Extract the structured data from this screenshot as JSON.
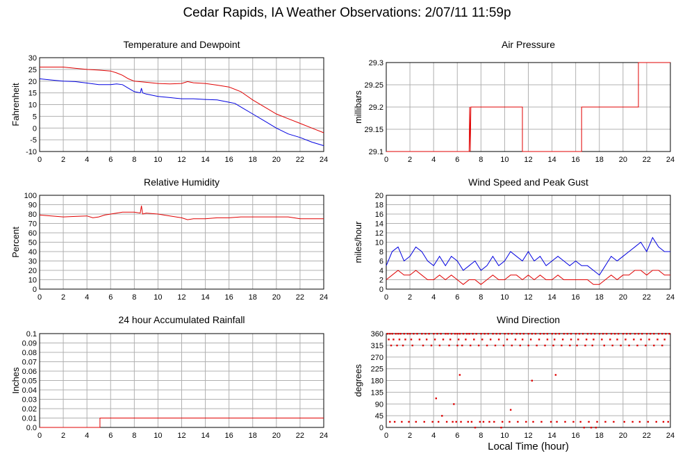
{
  "title": "Cedar Rapids, IA Weather Observations: 2/07/11 11:59p",
  "xlabel": "Local Time (hour)",
  "colors": {
    "primary": "#e00000",
    "secondary": "#0000e0",
    "grid": "#b0b0b0"
  },
  "chart_data": [
    {
      "type": "line",
      "title": "Temperature and Dewpoint",
      "ylabel": "Fahrenheit",
      "xlim": [
        0,
        24
      ],
      "ylim": [
        -10,
        30
      ],
      "xticks": [
        0,
        2,
        4,
        6,
        8,
        10,
        12,
        14,
        16,
        18,
        20,
        22,
        24
      ],
      "yticks": [
        -10,
        -5,
        0,
        5,
        10,
        15,
        20,
        25,
        30
      ],
      "grid": true,
      "series": [
        {
          "color": "#e00000",
          "x": [
            0,
            1,
            2,
            3,
            4,
            5,
            6,
            6.5,
            7,
            7.5,
            8,
            9,
            10,
            11,
            12,
            12.5,
            13,
            14,
            15,
            16,
            17,
            18,
            19,
            20,
            21,
            22,
            23,
            24
          ],
          "y": [
            26,
            26,
            26,
            25.5,
            25,
            24.7,
            24.3,
            23.5,
            22.5,
            21,
            20,
            19.5,
            19,
            18.8,
            19,
            19.8,
            19.3,
            19,
            18.3,
            17.5,
            15.5,
            12,
            9,
            6,
            4,
            2,
            0,
            -2
          ]
        },
        {
          "color": "#0000e0",
          "x": [
            0,
            1,
            2,
            3,
            4,
            5,
            6,
            6.5,
            7,
            7.5,
            8,
            8.5,
            8.6,
            8.7,
            9,
            10,
            11,
            12,
            13,
            14,
            15,
            16,
            16.5,
            17,
            18,
            19,
            20,
            21,
            22,
            23,
            24
          ],
          "y": [
            21,
            20.5,
            20,
            19.8,
            19.2,
            18.5,
            18.5,
            18.8,
            18.5,
            17,
            15.5,
            15,
            17,
            15,
            14.5,
            13.5,
            13,
            12.5,
            12.5,
            12.2,
            12,
            11,
            10.5,
            9,
            6,
            3,
            0,
            -2.5,
            -4,
            -6,
            -7.5
          ]
        }
      ]
    },
    {
      "type": "line",
      "title": "Air Pressure",
      "ylabel": "millibars",
      "xlim": [
        0,
        24
      ],
      "ylim": [
        29.1,
        29.3
      ],
      "xticks": [
        0,
        2,
        4,
        6,
        8,
        10,
        12,
        14,
        16,
        18,
        20,
        22,
        24
      ],
      "yticks": [
        29.1,
        29.15,
        29.2,
        29.25,
        29.3
      ],
      "ytick_labels": [
        "29.1",
        "29.15",
        "29.2",
        "29.25",
        "29.3"
      ],
      "grid": true,
      "series": [
        {
          "color": "#e00000",
          "x": [
            0,
            7,
            7.05,
            7.1,
            7.15,
            7.2,
            11.5,
            11.5,
            16.5,
            16.5,
            21.3,
            21.3,
            24
          ],
          "y": [
            29.1,
            29.1,
            29.2,
            29.1,
            29.2,
            29.2,
            29.2,
            29.1,
            29.1,
            29.2,
            29.2,
            29.3,
            29.3
          ]
        }
      ]
    },
    {
      "type": "line",
      "title": "Relative Humidity",
      "ylabel": "Percent",
      "xlim": [
        0,
        24
      ],
      "ylim": [
        0,
        100
      ],
      "xticks": [
        0,
        2,
        4,
        6,
        8,
        10,
        12,
        14,
        16,
        18,
        20,
        22,
        24
      ],
      "yticks": [
        0,
        10,
        20,
        30,
        40,
        50,
        60,
        70,
        80,
        90,
        100
      ],
      "grid": true,
      "series": [
        {
          "color": "#e00000",
          "x": [
            0,
            1,
            2,
            3,
            4,
            4.5,
            5,
            5.5,
            6,
            7,
            8,
            8.5,
            8.6,
            8.7,
            9,
            10,
            11,
            12,
            12.5,
            13,
            14,
            15,
            16,
            17,
            18,
            19,
            20,
            21,
            22,
            23,
            24
          ],
          "y": [
            79,
            78,
            77,
            77.5,
            78,
            76,
            77,
            79,
            80,
            82,
            82,
            81,
            89,
            80,
            81,
            80,
            78,
            76,
            74,
            75,
            75,
            76,
            76,
            77,
            77,
            77,
            77,
            77,
            75,
            75,
            75
          ]
        }
      ]
    },
    {
      "type": "line",
      "title": "Wind Speed and Peak Gust",
      "ylabel": "miles/hour",
      "xlim": [
        0,
        24
      ],
      "ylim": [
        0,
        20
      ],
      "xticks": [
        0,
        2,
        4,
        6,
        8,
        10,
        12,
        14,
        16,
        18,
        20,
        22,
        24
      ],
      "yticks": [
        0,
        2,
        4,
        6,
        8,
        10,
        12,
        14,
        16,
        18,
        20
      ],
      "grid": true,
      "series": [
        {
          "color": "#0000e0",
          "x": [
            0,
            0.5,
            1,
            1.5,
            2,
            2.5,
            3,
            3.5,
            4,
            4.5,
            5,
            5.5,
            6,
            6.5,
            7,
            7.5,
            8,
            8.5,
            9,
            9.5,
            10,
            10.5,
            11,
            11.5,
            12,
            12.5,
            13,
            13.5,
            14,
            14.5,
            15,
            15.5,
            16,
            16.5,
            17,
            17.5,
            18,
            18.5,
            19,
            19.5,
            20,
            20.5,
            21,
            21.5,
            22,
            22.5,
            23,
            23.5,
            24
          ],
          "y": [
            5,
            8,
            9,
            6,
            7,
            9,
            8,
            6,
            5,
            7,
            5,
            7,
            6,
            4,
            5,
            6,
            4,
            5,
            7,
            5,
            6,
            8,
            7,
            6,
            8,
            6,
            7,
            5,
            6,
            7,
            6,
            5,
            6,
            5,
            5,
            4,
            3,
            5,
            7,
            6,
            7,
            8,
            9,
            10,
            8,
            11,
            9,
            8,
            8
          ]
        },
        {
          "color": "#e00000",
          "x": [
            0,
            0.5,
            1,
            1.5,
            2,
            2.5,
            3,
            3.5,
            4,
            4.5,
            5,
            5.5,
            6,
            6.5,
            7,
            7.5,
            8,
            8.5,
            9,
            9.5,
            10,
            10.5,
            11,
            11.5,
            12,
            12.5,
            13,
            13.5,
            14,
            14.5,
            15,
            15.5,
            16,
            16.5,
            17,
            17.5,
            18,
            18.5,
            19,
            19.5,
            20,
            20.5,
            21,
            21.5,
            22,
            22.5,
            23,
            23.5,
            24
          ],
          "y": [
            2,
            3,
            4,
            3,
            3,
            4,
            3,
            2,
            2,
            3,
            2,
            3,
            2,
            1,
            2,
            2,
            1,
            2,
            3,
            2,
            2,
            3,
            3,
            2,
            3,
            2,
            3,
            2,
            2,
            3,
            2,
            2,
            2,
            2,
            2,
            1,
            1,
            2,
            3,
            2,
            3,
            3,
            4,
            4,
            3,
            4,
            4,
            3,
            3
          ]
        }
      ]
    },
    {
      "type": "line",
      "title": "24 hour Accumulated Rainfall",
      "ylabel": "Inches",
      "xlim": [
        0,
        24
      ],
      "ylim": [
        0,
        0.1
      ],
      "xticks": [
        0,
        2,
        4,
        6,
        8,
        10,
        12,
        14,
        16,
        18,
        20,
        22,
        24
      ],
      "yticks": [
        0,
        0.01,
        0.02,
        0.03,
        0.04,
        0.05,
        0.06,
        0.07,
        0.08,
        0.09,
        0.1
      ],
      "ytick_labels": [
        "0.0",
        "0.01",
        "0.02",
        "0.03",
        "0.04",
        "0.05",
        "0.06",
        "0.07",
        "0.08",
        "0.09",
        "0.1"
      ],
      "grid": true,
      "series": [
        {
          "color": "#e00000",
          "x": [
            0,
            5.1,
            5.1,
            24
          ],
          "y": [
            0,
            0,
            0.01,
            0.01
          ]
        }
      ]
    },
    {
      "type": "scatter",
      "title": "Wind Direction",
      "ylabel": "degrees",
      "xlim": [
        0,
        24
      ],
      "ylim": [
        0,
        360
      ],
      "xticks": [
        0,
        2,
        4,
        6,
        8,
        10,
        12,
        14,
        16,
        18,
        20,
        22,
        24
      ],
      "yticks": [
        0,
        45,
        90,
        135,
        180,
        225,
        270,
        315,
        360
      ],
      "grid": true,
      "series": [
        {
          "color": "#e00000",
          "x": [
            0.1,
            0.3,
            0.5,
            0.8,
            1.0,
            1.2,
            1.5,
            1.8,
            2.0,
            2.3,
            2.6,
            3.0,
            3.3,
            3.6,
            4.0,
            4.3,
            4.6,
            5.0,
            5.2,
            5.5,
            5.8,
            6.0,
            6.2,
            6.5,
            6.8,
            7.0,
            7.3,
            7.6,
            8.0,
            8.3,
            8.6,
            9.0,
            9.3,
            9.6,
            10.0,
            10.3,
            10.6,
            11.0,
            11.3,
            11.6,
            12.0,
            12.3,
            12.6,
            13.0,
            13.3,
            13.6,
            14.0,
            14.3,
            14.6,
            15.0,
            15.3,
            15.6,
            16.0,
            16.3,
            16.6,
            17.0,
            17.3,
            17.6,
            18.0,
            18.3,
            18.6,
            19.0,
            19.3,
            19.6,
            20.0,
            20.3,
            20.6,
            21.0,
            21.3,
            21.6,
            22.0,
            22.3,
            22.6,
            23.0,
            23.3,
            23.6,
            23.9,
            0.2,
            0.6,
            1.1,
            1.6,
            2.1,
            2.8,
            3.4,
            4.1,
            4.8,
            5.4,
            6.1,
            6.7,
            7.4,
            8.1,
            8.8,
            9.5,
            10.2,
            10.9,
            11.5,
            12.2,
            12.9,
            13.6,
            14.2,
            14.9,
            15.6,
            16.2,
            16.9,
            17.5,
            18.2,
            18.9,
            19.5,
            20.2,
            20.9,
            21.5,
            22.2,
            22.9,
            23.5,
            0.4,
            0.9,
            1.4,
            2.2,
            3.1,
            3.8,
            4.5,
            5.3,
            6.0,
            6.4,
            7.1,
            7.8,
            8.5,
            9.2,
            9.9,
            10.6,
            11.3,
            12.0,
            12.7,
            13.4,
            14.1,
            14.8,
            15.5,
            16.1,
            16.8,
            17.4,
            18.4,
            19.1,
            19.8,
            20.5,
            21.2,
            21.9,
            22.6,
            23.3,
            0.3,
            0.7,
            1.3,
            1.9,
            2.5,
            3.2,
            3.9,
            4.4,
            4.7,
            5.1,
            5.6,
            5.9,
            6.3,
            6.9,
            7.2,
            7.9,
            8.2,
            9.1,
            9.8,
            10.4,
            11.1,
            11.8,
            12.4,
            13.1,
            13.9,
            14.4,
            15.1,
            15.8,
            16.4,
            17.1,
            17.8,
            18.5,
            19.2,
            20.1,
            20.8,
            21.4,
            22.1,
            22.8,
            23.4,
            23.8,
            4.2,
            5.7,
            6.2,
            10.5,
            12.3,
            14.3,
            16.7,
            17.3,
            17.7,
            9.7,
            7.5,
            8.7
          ],
          "y": [
            360,
            360,
            360,
            360,
            360,
            360,
            360,
            360,
            360,
            360,
            360,
            360,
            360,
            360,
            360,
            360,
            360,
            360,
            360,
            360,
            360,
            360,
            360,
            360,
            360,
            360,
            360,
            360,
            360,
            360,
            360,
            360,
            360,
            360,
            360,
            360,
            360,
            360,
            360,
            360,
            360,
            360,
            360,
            360,
            360,
            360,
            360,
            360,
            360,
            360,
            360,
            360,
            360,
            360,
            360,
            360,
            360,
            360,
            360,
            360,
            360,
            360,
            360,
            360,
            360,
            360,
            360,
            360,
            360,
            360,
            360,
            360,
            360,
            360,
            360,
            360,
            360,
            338,
            338,
            338,
            338,
            338,
            338,
            338,
            338,
            338,
            338,
            338,
            338,
            338,
            338,
            338,
            338,
            338,
            338,
            338,
            338,
            338,
            338,
            338,
            338,
            338,
            338,
            338,
            338,
            338,
            338,
            338,
            338,
            338,
            338,
            338,
            338,
            338,
            315,
            315,
            315,
            315,
            315,
            315,
            315,
            315,
            315,
            315,
            315,
            315,
            315,
            315,
            315,
            315,
            315,
            315,
            315,
            315,
            315,
            315,
            315,
            315,
            315,
            315,
            315,
            315,
            315,
            315,
            315,
            315,
            315,
            315,
            22,
            22,
            22,
            22,
            22,
            22,
            22,
            22,
            45,
            22,
            22,
            22,
            22,
            22,
            22,
            22,
            22,
            22,
            22,
            22,
            22,
            22,
            22,
            22,
            22,
            22,
            22,
            22,
            22,
            22,
            22,
            22,
            22,
            22,
            22,
            22,
            22,
            22,
            22,
            22,
            112,
            90,
            202,
            68,
            180,
            202,
            0,
            0,
            0,
            0,
            0,
            22
          ]
        }
      ]
    }
  ]
}
